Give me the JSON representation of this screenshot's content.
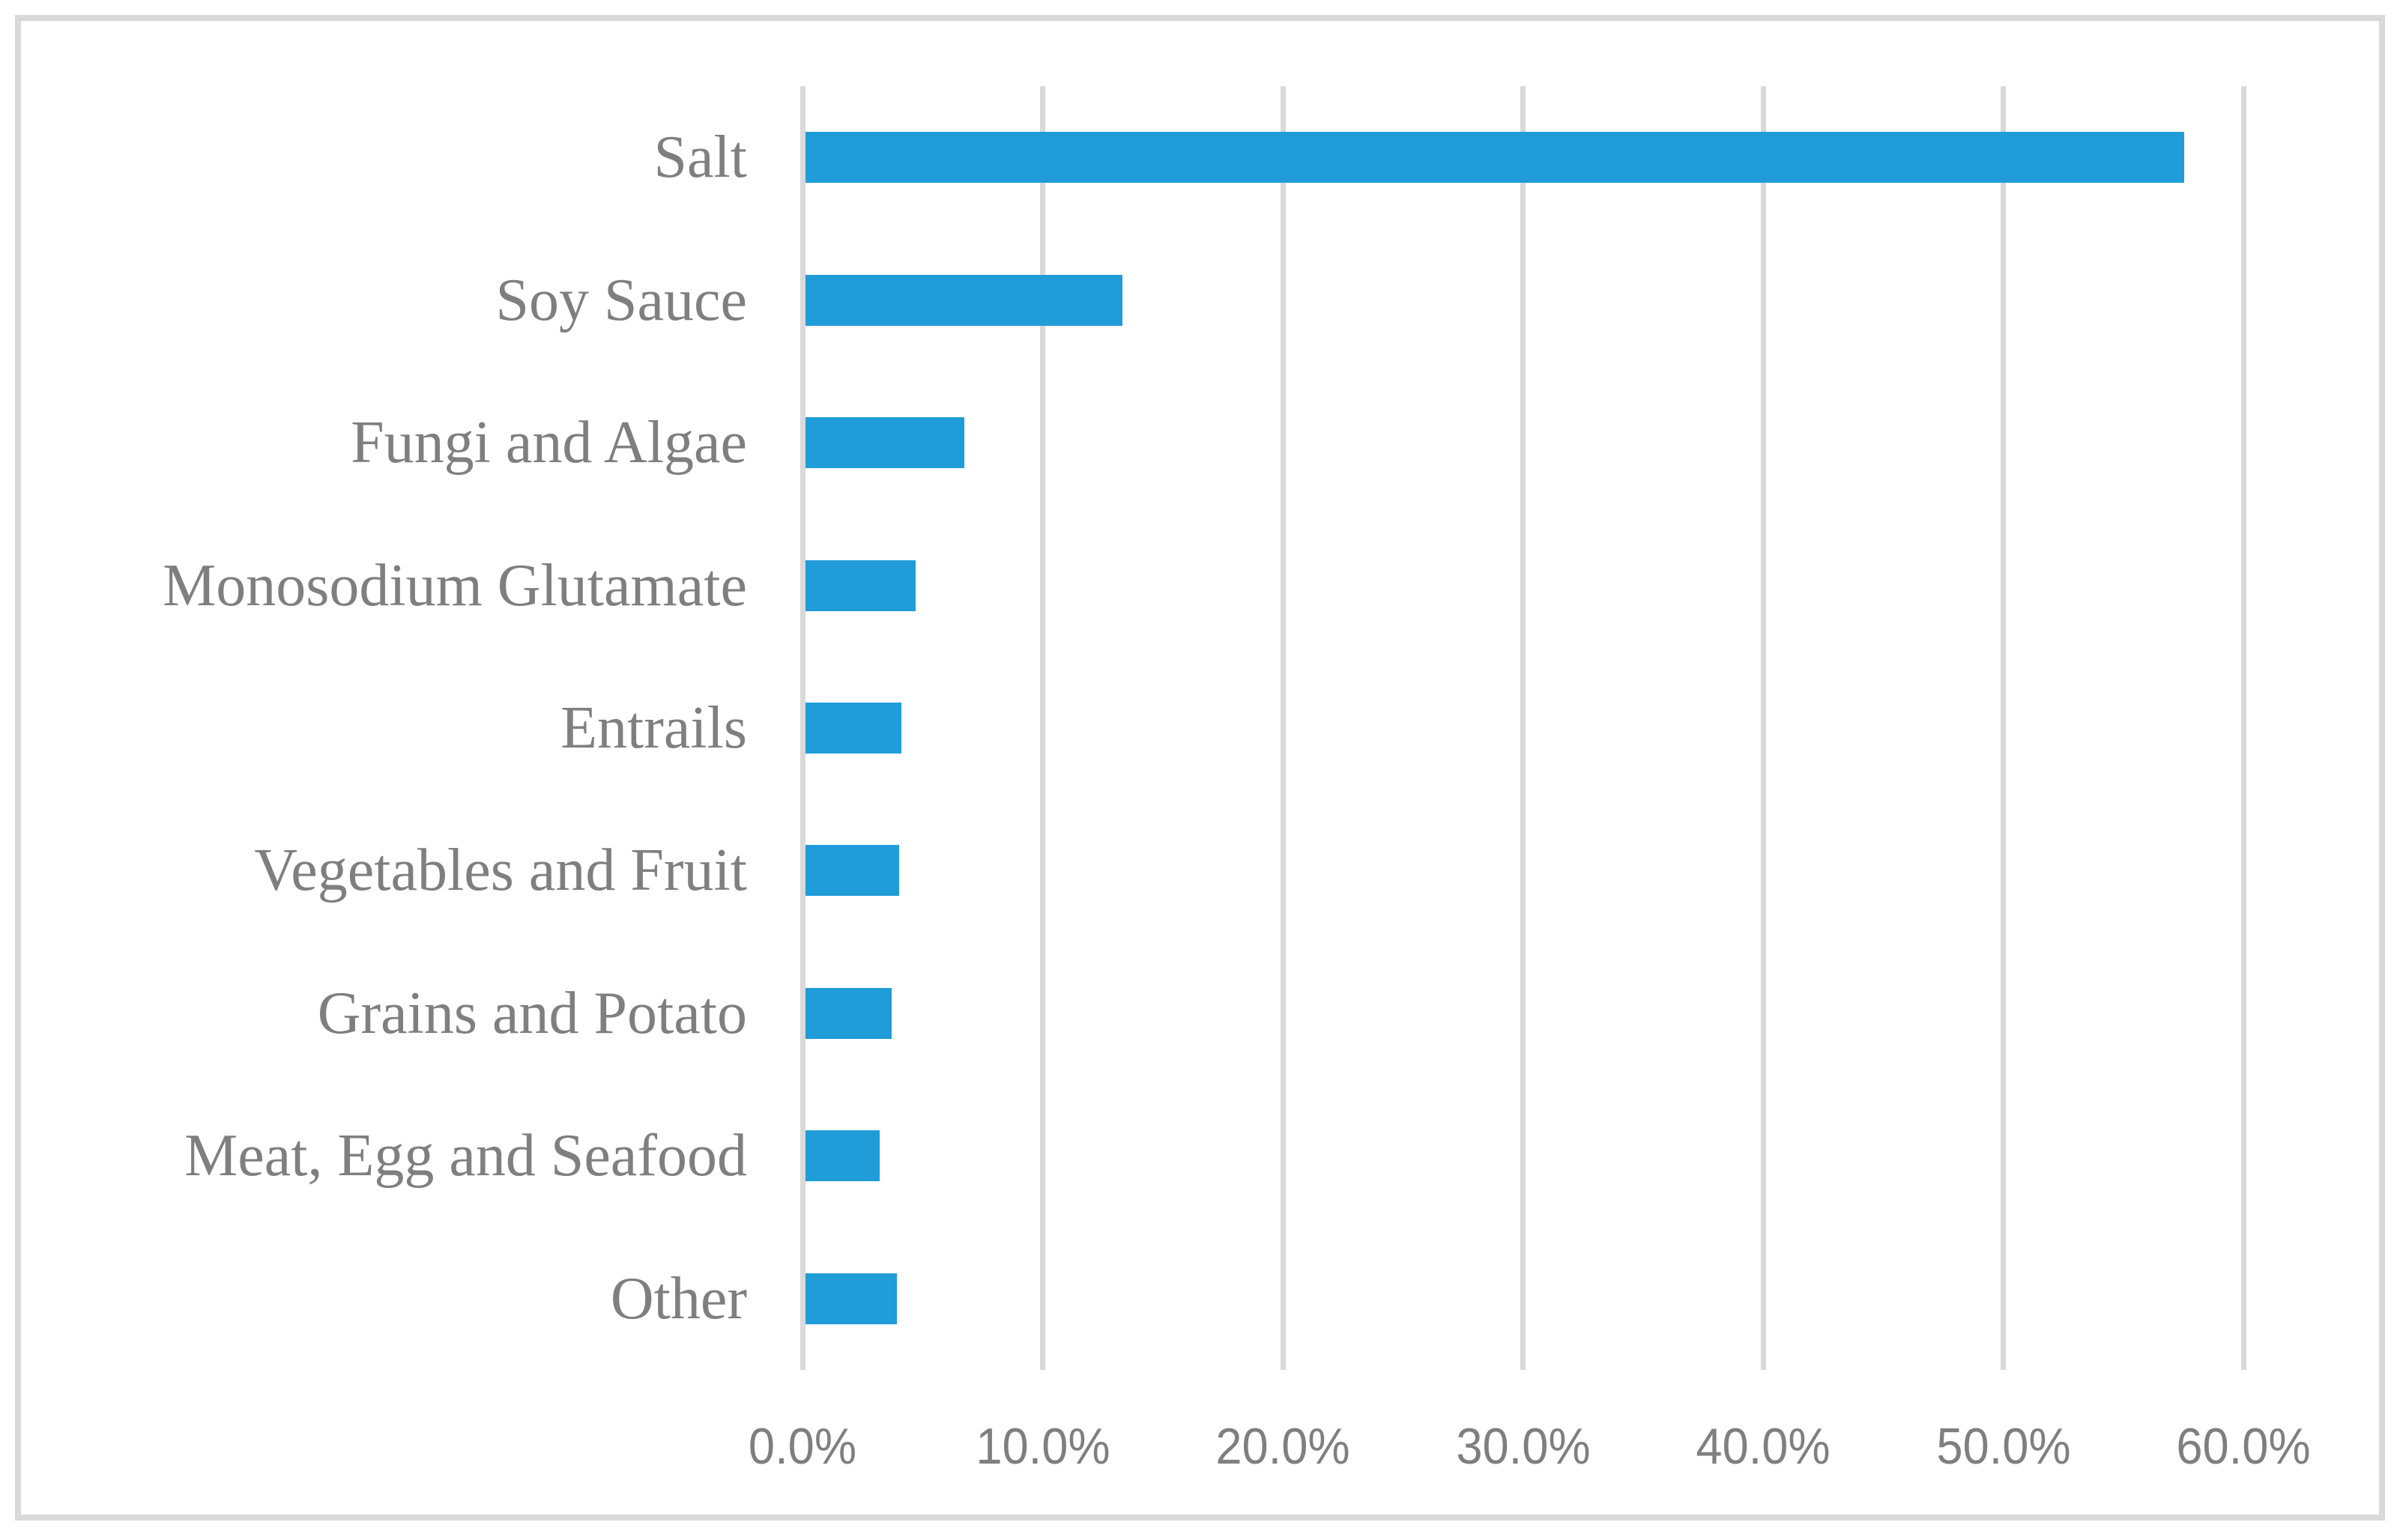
{
  "chart_data": {
    "type": "bar",
    "orientation": "horizontal",
    "title": "",
    "xlabel": "",
    "ylabel": "",
    "categories": [
      "Salt",
      "Soy Sauce",
      "Fungi and Algae",
      "Monosodium Glutamate",
      "Entrails",
      "Vegetables and Fruit",
      "Grains and Potato",
      "Meat, Egg and Seafood",
      "Other"
    ],
    "values": [
      57.4,
      13.2,
      6.6,
      4.6,
      4.0,
      3.9,
      3.6,
      3.1,
      3.8
    ],
    "unit": "%",
    "xlim": [
      0,
      60
    ],
    "x_ticks": [
      0,
      10,
      20,
      30,
      40,
      50,
      60
    ],
    "x_tick_labels": [
      "0.0%",
      "10.0%",
      "20.0%",
      "30.0%",
      "40.0%",
      "50.0%",
      "60.0%"
    ],
    "grid": "vertical-major-only",
    "legend": "none",
    "colors": {
      "bar": "#209cd8",
      "axis_text": "#7f7f7f",
      "gridline": "#d9d9d9",
      "frame_border": "#d9d9d9",
      "background": "#ffffff"
    }
  }
}
